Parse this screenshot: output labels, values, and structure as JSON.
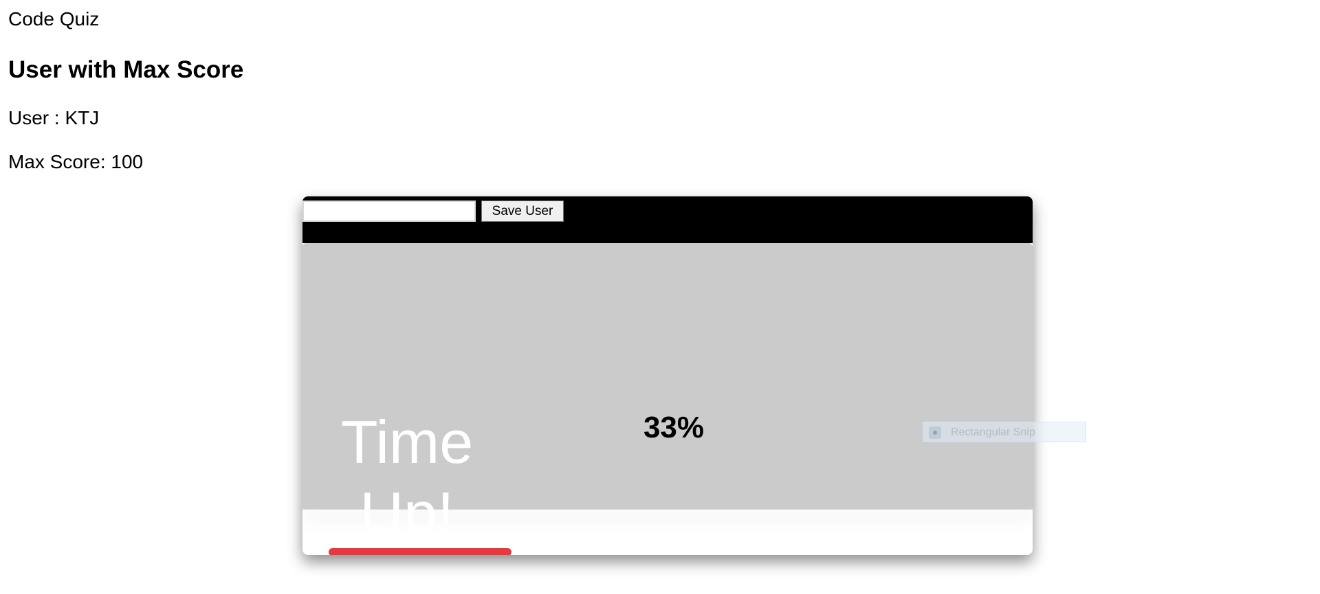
{
  "brand": "Code Quiz",
  "leaderboard": {
    "heading": "User with Max Score",
    "user_line": "User : KTJ",
    "score_line": "Max Score: 100"
  },
  "quiz": {
    "name_input_value": "",
    "save_label": "Save User",
    "time_up_text": "Time Up!",
    "score_percent": "33%",
    "timer_bar_color": "#e8383e"
  },
  "snip_overlay": {
    "label": "Rectangular Snip",
    "icon": "snip-mode-icon"
  }
}
